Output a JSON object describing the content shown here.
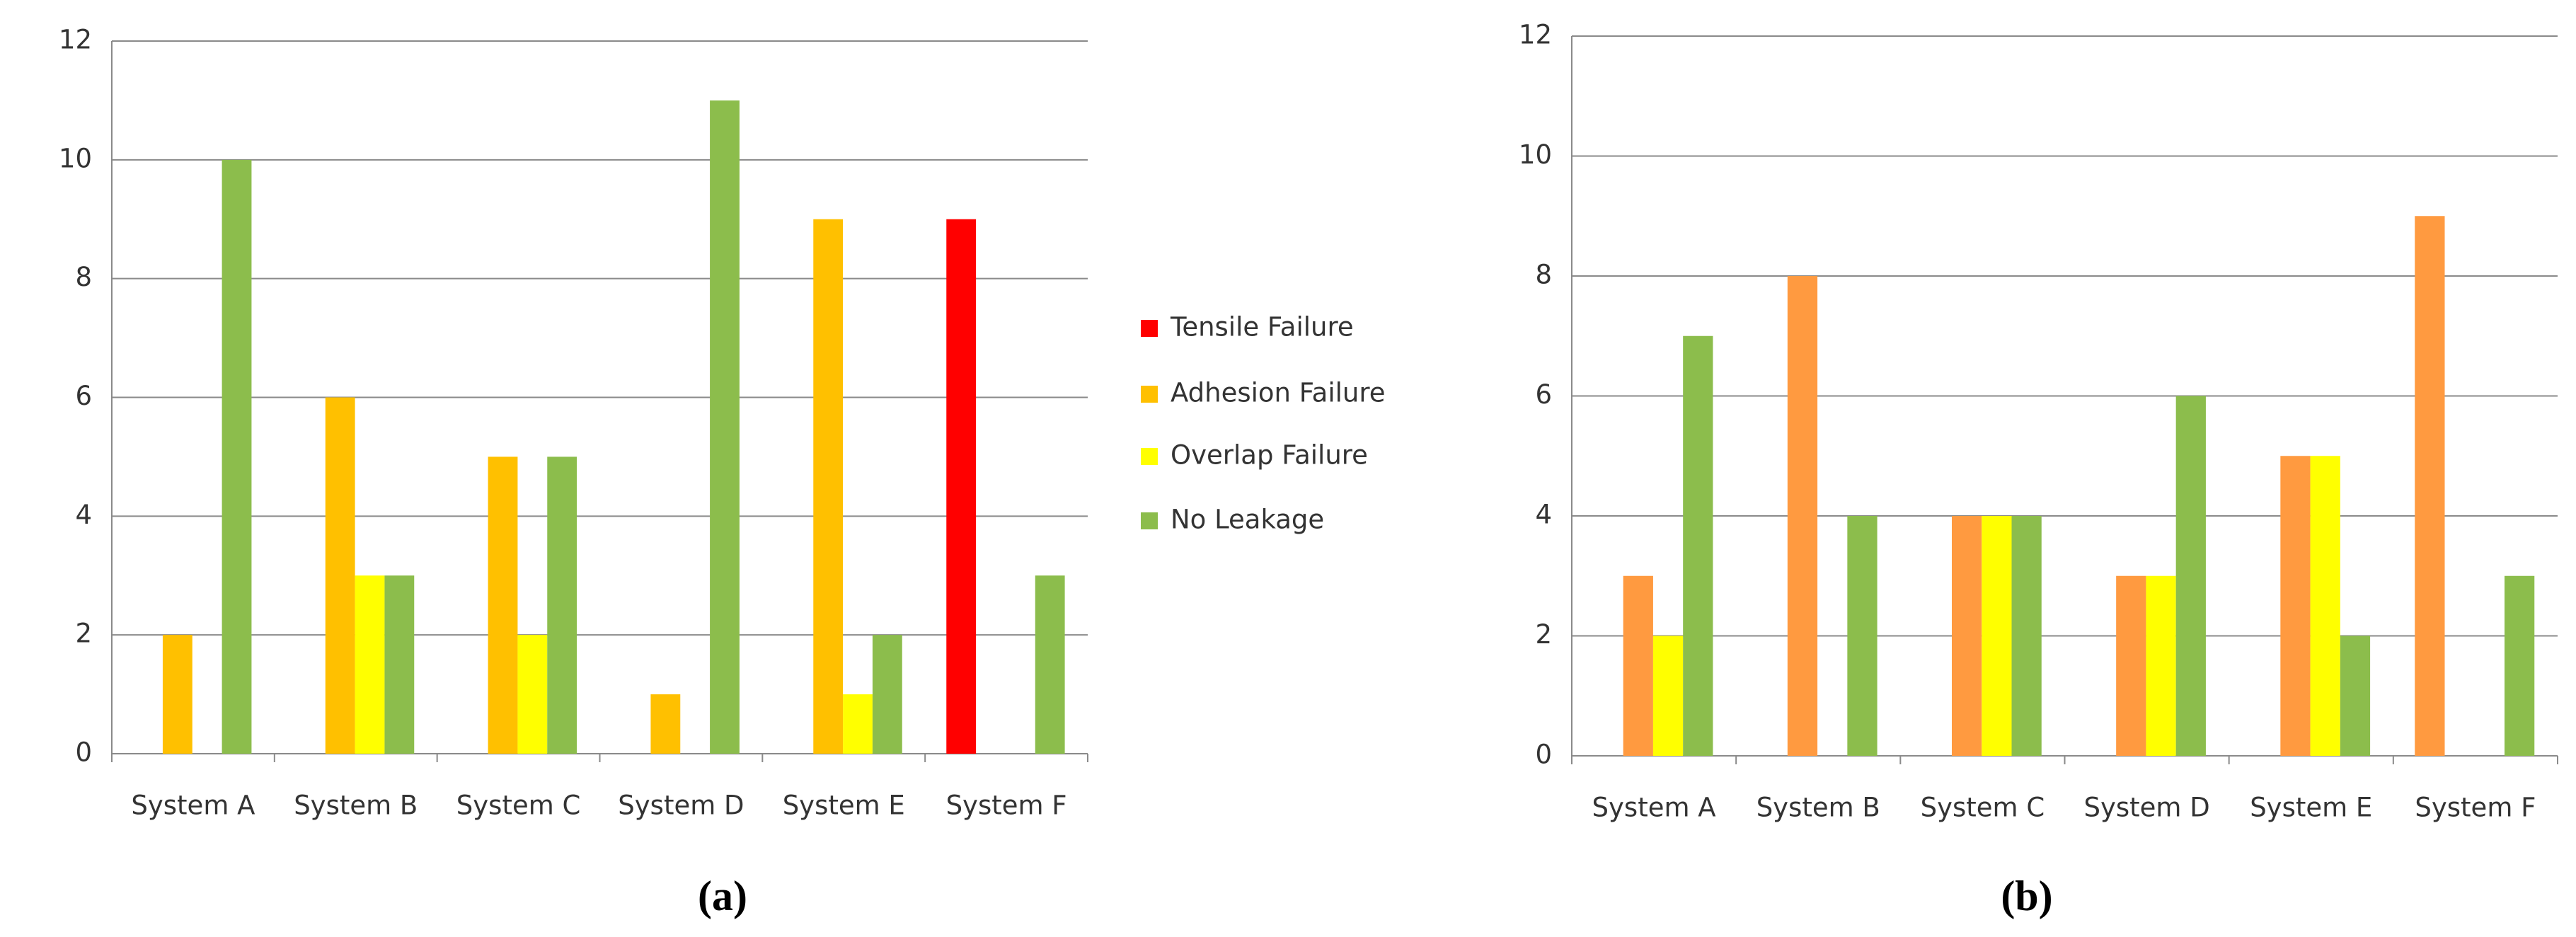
{
  "chart_data": [
    {
      "type": "bar",
      "caption": "(a)",
      "categories": [
        "System A",
        "System B",
        "System C",
        "System D",
        "System E",
        "System F"
      ],
      "series": [
        {
          "name": "Tensile Failure",
          "color": "#ff0000",
          "values": [
            0,
            0,
            0,
            0,
            0,
            9
          ]
        },
        {
          "name": "Adhesion Failure",
          "color": "#ffc000",
          "values": [
            2,
            6,
            5,
            1,
            9,
            0
          ]
        },
        {
          "name": "Overlap Failure",
          "color": "#ffff00",
          "values": [
            0,
            3,
            2,
            0,
            1,
            0
          ]
        },
        {
          "name": "No Leakage",
          "color": "#8cbd4c",
          "values": [
            10,
            3,
            5,
            11,
            2,
            3
          ]
        }
      ],
      "ylim": [
        0,
        12
      ],
      "yticks": [
        0,
        2,
        4,
        6,
        8,
        10,
        12
      ],
      "grid": true,
      "legend": "right"
    },
    {
      "type": "bar",
      "caption": "(b)",
      "categories": [
        "System A",
        "System B",
        "System C",
        "System D",
        "System E",
        "System F"
      ],
      "series": [
        {
          "color": "#ff9a40",
          "values": [
            0,
            0,
            0,
            0,
            0,
            9
          ]
        },
        {
          "color": "#ff9a40",
          "values": [
            3,
            8,
            4,
            3,
            5,
            0
          ]
        },
        {
          "color": "#ffff00",
          "values": [
            2,
            0,
            4,
            3,
            5,
            0
          ]
        },
        {
          "color": "#8cbd4c",
          "values": [
            7,
            4,
            4,
            6,
            2,
            3
          ]
        }
      ],
      "ylim": [
        0,
        12
      ],
      "yticks": [
        0,
        2,
        4,
        6,
        8,
        10,
        12
      ],
      "grid": true
    }
  ]
}
